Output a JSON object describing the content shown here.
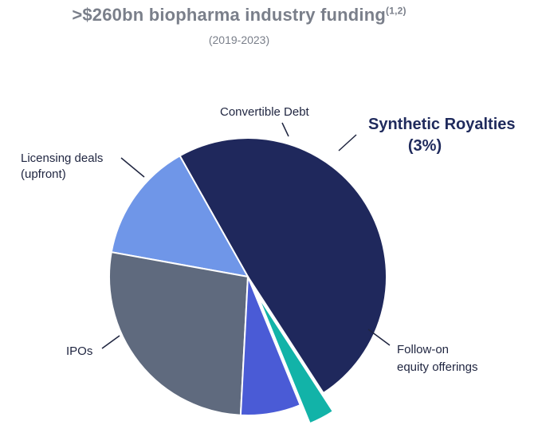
{
  "header": {
    "title": ">$260bn biopharma industry funding",
    "title_sup": "(1,2)",
    "subtitle": "(2019-2023)"
  },
  "chart_data": {
    "type": "pie",
    "title": ">$260bn biopharma industry funding",
    "subtitle": "(2019-2023)",
    "slices": [
      {
        "name": "Follow-on equity offerings",
        "value": 49,
        "color": "#1f285c"
      },
      {
        "name": "IPOs",
        "value": 14,
        "color": "#6f96e8"
      },
      {
        "name": "Licensing deals (upfront)",
        "value": 27,
        "color": "#5f6a7e"
      },
      {
        "name": "Convertible Debt",
        "value": 7,
        "color": "#4a5bd6"
      },
      {
        "name": "Synthetic Royalties",
        "value": 3,
        "color": "#12b3a8",
        "exploded": true
      }
    ],
    "labels": {
      "follow_on_1": "Follow-on",
      "follow_on_2": "equity offerings",
      "ipos": "IPOs",
      "licensing_1": "Licensing deals",
      "licensing_2": "(upfront)",
      "convertible": "Convertible Debt",
      "synthetic_1": "Synthetic Royalties",
      "synthetic_2": "(3%)"
    }
  }
}
